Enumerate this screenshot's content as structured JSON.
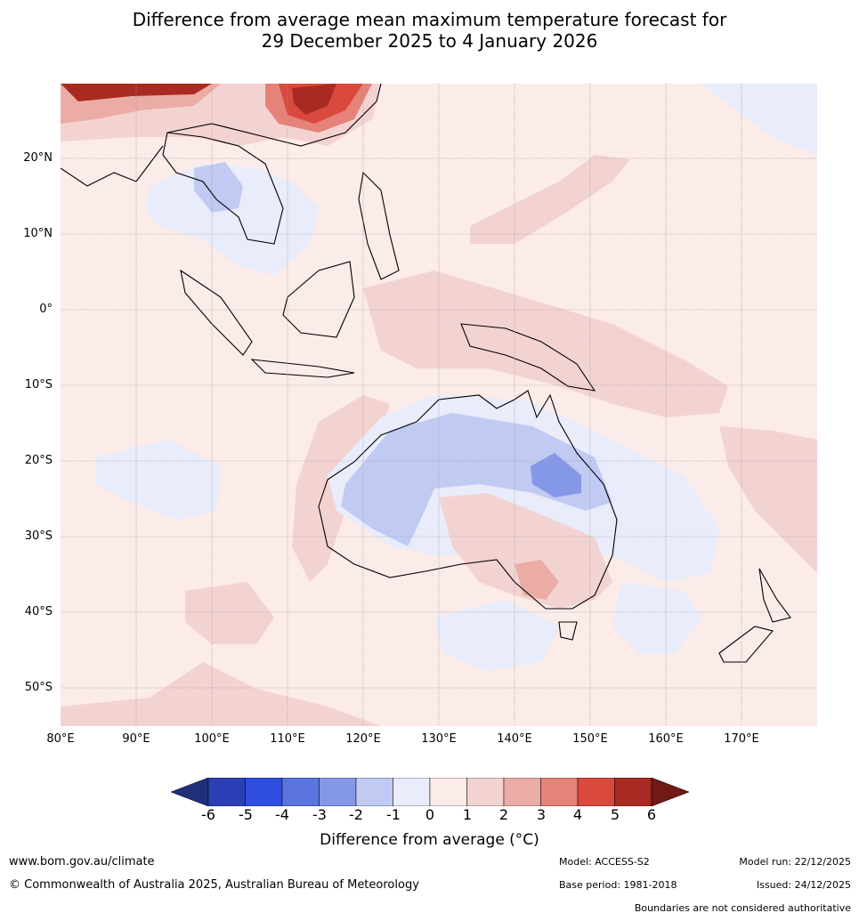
{
  "title": {
    "line1": "Difference from average mean maximum temperature forecast for",
    "line2": "29 December 2025 to 4 January 2026"
  },
  "axes": {
    "lat_labels": [
      "20°N",
      "10°N",
      "0°",
      "10°S",
      "20°S",
      "30°S",
      "40°S",
      "50°S"
    ],
    "lon_labels": [
      "80°E",
      "90°E",
      "100°E",
      "110°E",
      "120°E",
      "130°E",
      "140°E",
      "150°E",
      "160°E",
      "170°E"
    ],
    "lat_range": [
      -55,
      30
    ],
    "lon_range": [
      80,
      180
    ]
  },
  "colorbar": {
    "ticks": [
      "-6",
      "-5",
      "-4",
      "-3",
      "-2",
      "-1",
      "0",
      "1",
      "2",
      "3",
      "4",
      "5",
      "6"
    ],
    "colors": [
      "#1f2f7a",
      "#2a3fb5",
      "#2f4fe0",
      "#5b74e0",
      "#8598e8",
      "#c1caf2",
      "#e8ecfb",
      "#fbebe9",
      "#f3d3d1",
      "#ebaca6",
      "#e5827a",
      "#d9493d",
      "#a92a22",
      "#6f1a17"
    ],
    "label": "Difference from average (°C)"
  },
  "footer": {
    "url": "www.bom.gov.au/climate",
    "copyright": "© Commonwealth of Australia 2025, Australian Bureau of Meteorology",
    "model": "Model: ACCESS-S2",
    "base_period": "Base period: 1981-2018",
    "model_run": "Model run: 22/12/2025",
    "issued": "Issued: 24/12/2025",
    "disclaimer": "Boundaries are not considered authoritative"
  }
}
